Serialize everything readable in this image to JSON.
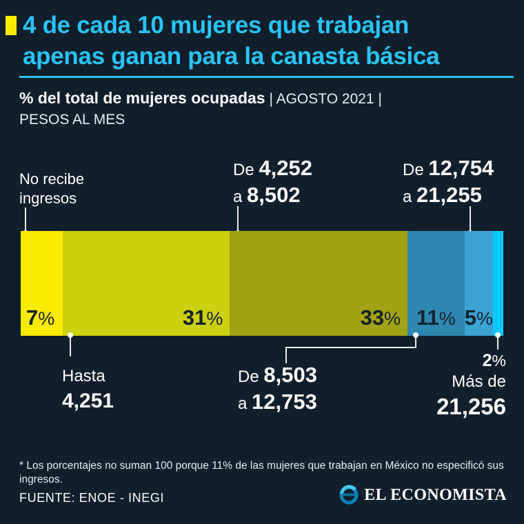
{
  "colors": {
    "background": "#111e2b",
    "accent_cyan": "#29c3f5",
    "accent_yellow": "#f8ec00",
    "bar_label_dark": "#16212d",
    "text_white": "#ffffff"
  },
  "header": {
    "title_line1": "4 de cada 10 mujeres que trabajan",
    "title_line2": "apenas ganan para la canasta básica",
    "subtitle_bold": "% del total de mujeres ocupadas",
    "subtitle_period": "| AGOSTO 2021 |",
    "subtitle_line2": "PESOS AL MES"
  },
  "chart_data": {
    "type": "bar",
    "subtype": "horizontal-stacked",
    "title": "% del total de mujeres ocupadas",
    "period": "AGOSTO 2021",
    "units_note": "PESOS AL MES",
    "value_unit": "%",
    "categories": [
      "No recibe ingresos",
      "Hasta 4,251",
      "De 4,252 a 8,502",
      "De 8,503 a 12,753",
      "De 12,754 a 21,255",
      "Más de 21,256"
    ],
    "values": [
      7,
      31,
      33,
      11,
      5,
      2
    ],
    "colors": [
      "#f8ec00",
      "#ccd00e",
      "#a2a214",
      "#2e87ae",
      "#3aa3d3",
      "#00c9fe"
    ],
    "label_visible": [
      true,
      true,
      true,
      true,
      true,
      false
    ],
    "label_align": [
      "left",
      "right",
      "right",
      "center",
      "center",
      "center"
    ],
    "values_sum_note": "Los porcentajes no suman 100 porque 11% de las mujeres que trabajan en México no especificó sus ingresos.",
    "legend_position": "none",
    "grid": false
  },
  "labels": {
    "no_income_line1": "No recibe",
    "no_income_line2": "ingresos",
    "r2_prefix1": "De",
    "r2_num1": "4,252",
    "r2_prefix2": "a",
    "r2_num2": "8,502",
    "r4_prefix1": "De",
    "r4_num1": "12,754",
    "r4_prefix2": "a",
    "r4_num2": "21,255",
    "r1_word": "Hasta",
    "r1_num": "4,251",
    "r3_prefix1": "De",
    "r3_num1": "8,503",
    "r3_prefix2": "a",
    "r3_num2": "12,753",
    "r5_pct": "2",
    "r5_pct_sign": "%",
    "r5_word": "Más de",
    "r5_num": "21,256"
  },
  "footer": {
    "footnote": "* Los porcentajes no suman 100 porque 11% de las mujeres que trabajan en México no especificó sus ingresos.",
    "source": "FUENTE: ENOE - INEGI",
    "logo_text": "EL ECONOMISTA"
  }
}
